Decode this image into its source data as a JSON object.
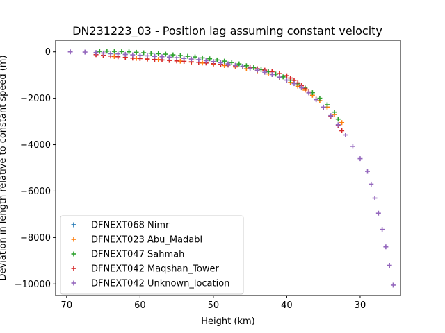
{
  "chart_data": {
    "type": "scatter",
    "title": "DN231223_03 - Position lag assuming constant velocity",
    "xlabel": "Height (km)",
    "ylabel": "Deviation in length relative to constant speed (m)",
    "xlim": [
      71.5,
      24.5
    ],
    "ylim": [
      -10500,
      500
    ],
    "x_ticks": [
      70,
      60,
      50,
      40,
      30
    ],
    "y_ticks": [
      0,
      -2000,
      -4000,
      -6000,
      -8000,
      -10000
    ],
    "y_tick_labels": [
      "0",
      "−2000",
      "−4000",
      "−6000",
      "−8000",
      "−10000"
    ],
    "grid": false,
    "legend_position": "lower-left",
    "marker": "+",
    "series": [
      {
        "name": "DFNEXT068 Nimr",
        "color": "#1f77b4",
        "x": [
          66,
          64,
          62,
          60,
          58,
          56,
          54,
          52,
          50,
          48,
          46
        ],
        "y": [
          -40,
          -80,
          -110,
          -150,
          -190,
          -230,
          -280,
          -340,
          -420,
          -520,
          -620
        ]
      },
      {
        "name": "DFNEXT023 Abu_Madabi",
        "color": "#ff7f0e",
        "x": [
          65,
          63.5,
          62,
          60.5,
          59,
          57.5,
          56,
          54.5,
          53,
          51.5,
          50,
          48.5,
          47,
          45.5,
          44,
          42.5,
          41,
          39.5,
          38.5,
          37.5,
          36.5,
          35.5,
          34.5,
          33.5,
          32.5
        ],
        "y": [
          -150,
          -200,
          -240,
          -280,
          -310,
          -330,
          -360,
          -400,
          -440,
          -480,
          -530,
          -590,
          -650,
          -730,
          -820,
          -950,
          -1100,
          -1320,
          -1480,
          -1650,
          -1870,
          -2100,
          -2380,
          -2700,
          -3050
        ]
      },
      {
        "name": "DFNEXT047 Sahmah",
        "color": "#2ca02c",
        "x": [
          65.5,
          64.5,
          63.5,
          62.5,
          61.5,
          60.5,
          59.5,
          58.5,
          57.5,
          56.5,
          55.5,
          54.5,
          53.5,
          52.5,
          51.5,
          50.5,
          49.5,
          48.5,
          47.5,
          46.5,
          45.5,
          44.5,
          43.5,
          42.5,
          41.5,
          40.5,
          39.5,
          38.5,
          37.5,
          36.5,
          35.5,
          34.5,
          33.5,
          33
        ],
        "y": [
          20,
          30,
          20,
          10,
          0,
          -20,
          -40,
          -60,
          -80,
          -100,
          -130,
          -160,
          -190,
          -220,
          -260,
          -300,
          -350,
          -400,
          -460,
          -520,
          -600,
          -680,
          -760,
          -860,
          -960,
          -1080,
          -1220,
          -1380,
          -1560,
          -1760,
          -2000,
          -2280,
          -2600,
          -2900
        ]
      },
      {
        "name": "DFNEXT042 Maqshan_Tower",
        "color": "#d62728",
        "x": [
          66,
          65,
          64,
          63,
          62,
          61,
          60,
          59,
          58,
          57,
          56,
          55,
          54,
          53,
          52,
          51,
          50,
          49,
          48,
          47,
          46,
          45,
          44,
          43,
          42,
          41,
          40,
          39.5,
          39,
          38.5,
          38,
          37.5,
          37,
          36,
          35,
          34,
          33,
          32.5
        ],
        "y": [
          -120,
          -150,
          -180,
          -210,
          -240,
          -270,
          -290,
          -310,
          -330,
          -350,
          -370,
          -390,
          -410,
          -430,
          -450,
          -480,
          -510,
          -540,
          -570,
          -600,
          -640,
          -680,
          -730,
          -790,
          -860,
          -940,
          -1030,
          -1130,
          -1230,
          -1340,
          -1460,
          -1590,
          -1730,
          -2040,
          -2390,
          -2770,
          -3180,
          -3400
        ]
      },
      {
        "name": "DFNEXT042 Unknown_location",
        "color": "#9467bd",
        "x": [
          69.5,
          67.5,
          66,
          65,
          64,
          63,
          62,
          61,
          60,
          59,
          58,
          57,
          56,
          55,
          54,
          53,
          52,
          51,
          50,
          49,
          48,
          47,
          46,
          45,
          44,
          43,
          42,
          41,
          40,
          39,
          38,
          37,
          36,
          35,
          34,
          33,
          32,
          31,
          30,
          29,
          28.5,
          28,
          27.5,
          27,
          26.5,
          26,
          25.5
        ],
        "y": [
          0,
          -10,
          -30,
          -50,
          -70,
          -90,
          -110,
          -130,
          -150,
          -170,
          -190,
          -210,
          -230,
          -250,
          -280,
          -310,
          -340,
          -380,
          -420,
          -470,
          -520,
          -580,
          -640,
          -710,
          -790,
          -880,
          -980,
          -1090,
          -1220,
          -1370,
          -1550,
          -1770,
          -2060,
          -2380,
          -2750,
          -3140,
          -3580,
          -4070,
          -4600,
          -5150,
          -5700,
          -6300,
          -6950,
          -7650,
          -8400,
          -9200,
          -10050
        ]
      }
    ]
  }
}
